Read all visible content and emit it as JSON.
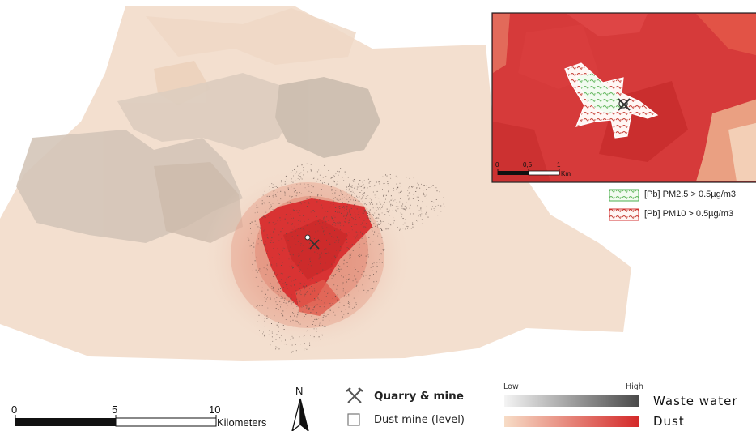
{
  "scale_bar": {
    "ticks": [
      "0",
      "5",
      "10"
    ],
    "unit": "Kilometers"
  },
  "north_arrow": {
    "label": "N"
  },
  "inset": {
    "scale_ticks": [
      "0",
      "0,5",
      "1"
    ],
    "unit": "Km",
    "legend": [
      {
        "label": "[Pb] PM2.5 > 0.5µg/m3",
        "color": "#4caf50"
      },
      {
        "label": "[Pb] PM10 > 0.5µg/m3",
        "color": "#d32f2f"
      }
    ]
  },
  "legend": {
    "quarry": {
      "label": "Quarry & mine",
      "icon": "crossed-hammers-icon"
    },
    "dust_mine": {
      "label": "Dust mine (level)"
    },
    "ramp_low": "Low",
    "ramp_high": "High",
    "waste_water": {
      "label": "Waste water",
      "from": "#f4f4f4",
      "to": "#4a4a4a"
    },
    "dust": {
      "label": "Dust",
      "from": "#f7dcc6",
      "to": "#d42a2a"
    }
  },
  "colors": {
    "land_base": "#f3dfcf",
    "gray_zone": "#d2c3b6",
    "dust_core": "#d93333"
  }
}
